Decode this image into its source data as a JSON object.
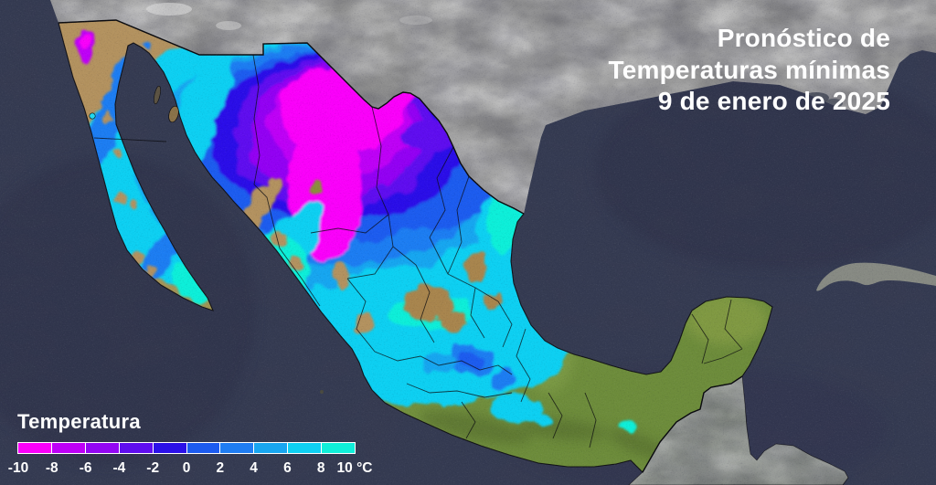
{
  "title": {
    "lines": [
      "Pronóstico de",
      "Temperaturas mínimas",
      "9 de enero de 2025"
    ]
  },
  "legend": {
    "label": "Temperatura",
    "unit": "°C",
    "range_c": [
      -10,
      10
    ],
    "step_c": 2,
    "ticks": [
      "-10",
      "-8",
      "-6",
      "-4",
      "-2",
      "0",
      "2",
      "4",
      "6",
      "8",
      "10 °C"
    ],
    "colors": [
      "#fa00fa",
      "#be00f6",
      "#9306f3",
      "#5f0def",
      "#2b10e8",
      "#1c5bef",
      "#1f7df2",
      "#18a6f0",
      "#0ed0f2",
      "#10efd9"
    ],
    "segments": [
      {
        "from_c": -10,
        "to_c": -8
      },
      {
        "from_c": -8,
        "to_c": -6
      },
      {
        "from_c": -6,
        "to_c": -4
      },
      {
        "from_c": -4,
        "to_c": -2
      },
      {
        "from_c": -2,
        "to_c": 0
      },
      {
        "from_c": 0,
        "to_c": 2
      },
      {
        "from_c": 2,
        "to_c": 4
      },
      {
        "from_c": 4,
        "to_c": 6
      },
      {
        "from_c": 6,
        "to_c": 8
      },
      {
        "from_c": 8,
        "to_c": 10
      }
    ]
  },
  "palette": {
    "ocean": "#353b52",
    "usa_land": "#8d8d8d",
    "foreign_land": "#7b807a",
    "terrain_green": "#74913f",
    "terrain_tan": "#b3925f",
    "boundary": "#0b0b0f",
    "text": "#ffffff"
  }
}
